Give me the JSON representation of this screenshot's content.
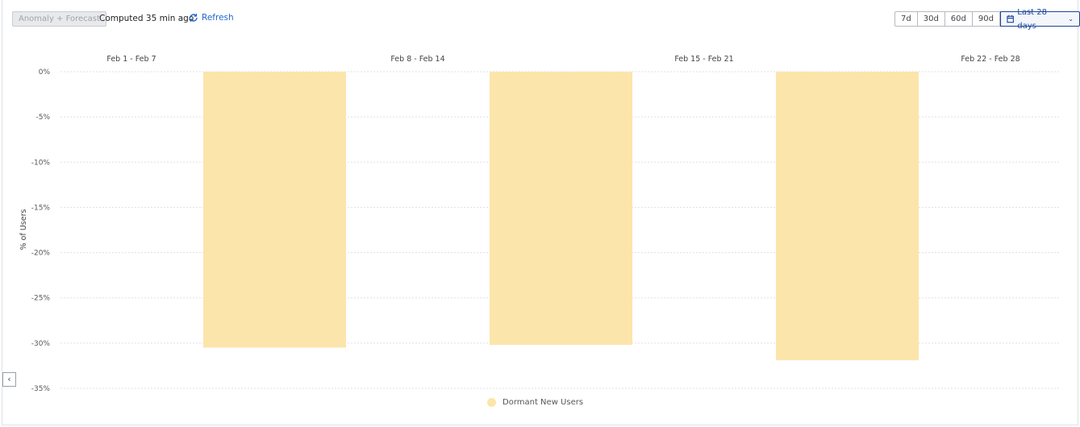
{
  "toolbar": {
    "anomaly_label": "Anomaly + Forecast",
    "computed": "Computed 35 min ago",
    "refresh": "Refresh",
    "ranges": [
      "7d",
      "30d",
      "60d",
      "90d"
    ],
    "selected_range": "Last 28 days"
  },
  "chart_data": {
    "type": "bar",
    "categories": [
      "Feb 1 - Feb 7",
      "Feb 8 - Feb 14",
      "Feb 15 - Feb 21",
      "Feb 22 - Feb 28"
    ],
    "series": [
      {
        "name": "Dormant New Users",
        "values": [
          null,
          -30.5,
          -30.2,
          -31.9
        ],
        "color": "#fce5ab"
      }
    ],
    "ylabel": "% of Users",
    "yticks": [
      "0%",
      "-5%",
      "-10%",
      "-15%",
      "-20%",
      "-25%",
      "-30%",
      "-35%"
    ],
    "ylim": [
      -35,
      0
    ],
    "grid": true,
    "legend": "bottom"
  }
}
